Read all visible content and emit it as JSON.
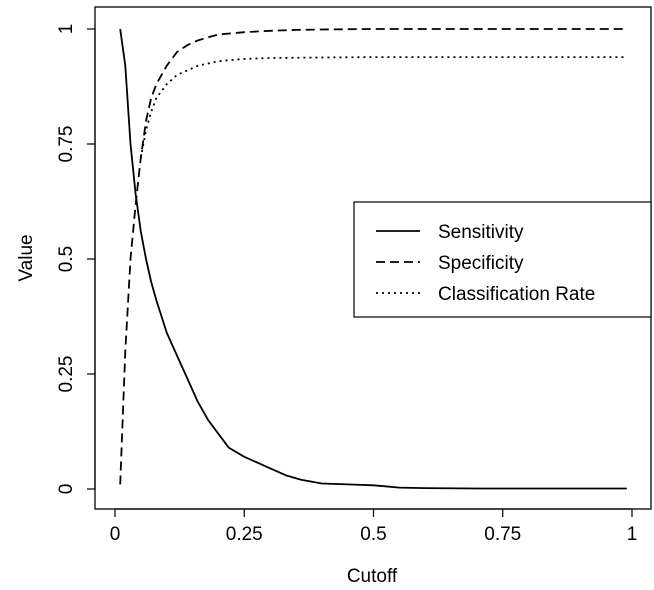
{
  "chart_data": {
    "type": "line",
    "title": "",
    "xlabel": "Cutoff",
    "ylabel": "Value",
    "xlim": [
      0,
      1
    ],
    "ylim": [
      0,
      1
    ],
    "x_ticks": [
      "0",
      "0.25",
      "0.5",
      "0.75",
      "1"
    ],
    "y_ticks": [
      "0",
      "0.25",
      "0.5",
      "0.75",
      "1"
    ],
    "grid": false,
    "legend_position": "right-center",
    "series": [
      {
        "name": "Sensitivity",
        "style": "solid",
        "x": [
          0.01,
          0.02,
          0.03,
          0.04,
          0.05,
          0.06,
          0.07,
          0.08,
          0.1,
          0.12,
          0.14,
          0.16,
          0.18,
          0.2,
          0.22,
          0.25,
          0.28,
          0.3,
          0.33,
          0.36,
          0.4,
          0.45,
          0.5,
          0.55,
          0.6,
          0.7,
          0.8,
          0.9,
          0.99
        ],
        "y": [
          1.0,
          0.92,
          0.75,
          0.64,
          0.56,
          0.5,
          0.45,
          0.41,
          0.34,
          0.29,
          0.24,
          0.19,
          0.15,
          0.12,
          0.09,
          0.07,
          0.055,
          0.045,
          0.03,
          0.02,
          0.012,
          0.01,
          0.008,
          0.003,
          0.002,
          0.001,
          0.001,
          0.001,
          0.001
        ]
      },
      {
        "name": "Specificity",
        "style": "dashed",
        "x": [
          0.01,
          0.02,
          0.03,
          0.04,
          0.05,
          0.06,
          0.07,
          0.08,
          0.1,
          0.12,
          0.14,
          0.16,
          0.18,
          0.2,
          0.25,
          0.3,
          0.35,
          0.4,
          0.5,
          0.6,
          0.7,
          0.8,
          0.9,
          0.99
        ],
        "y": [
          0.01,
          0.3,
          0.5,
          0.62,
          0.72,
          0.8,
          0.85,
          0.88,
          0.92,
          0.95,
          0.965,
          0.975,
          0.982,
          0.988,
          0.993,
          0.996,
          0.998,
          0.999,
          1.0,
          1.0,
          1.0,
          1.0,
          1.0,
          1.0
        ]
      },
      {
        "name": "Classification Rate",
        "style": "dotted",
        "x": [
          0.05,
          0.06,
          0.07,
          0.08,
          0.1,
          0.12,
          0.14,
          0.16,
          0.18,
          0.2,
          0.25,
          0.3,
          0.4,
          0.5,
          0.6,
          0.7,
          0.8,
          0.9,
          0.99
        ],
        "y": [
          0.72,
          0.78,
          0.82,
          0.85,
          0.88,
          0.9,
          0.91,
          0.92,
          0.925,
          0.93,
          0.935,
          0.937,
          0.938,
          0.939,
          0.939,
          0.939,
          0.939,
          0.939,
          0.939
        ]
      }
    ]
  }
}
